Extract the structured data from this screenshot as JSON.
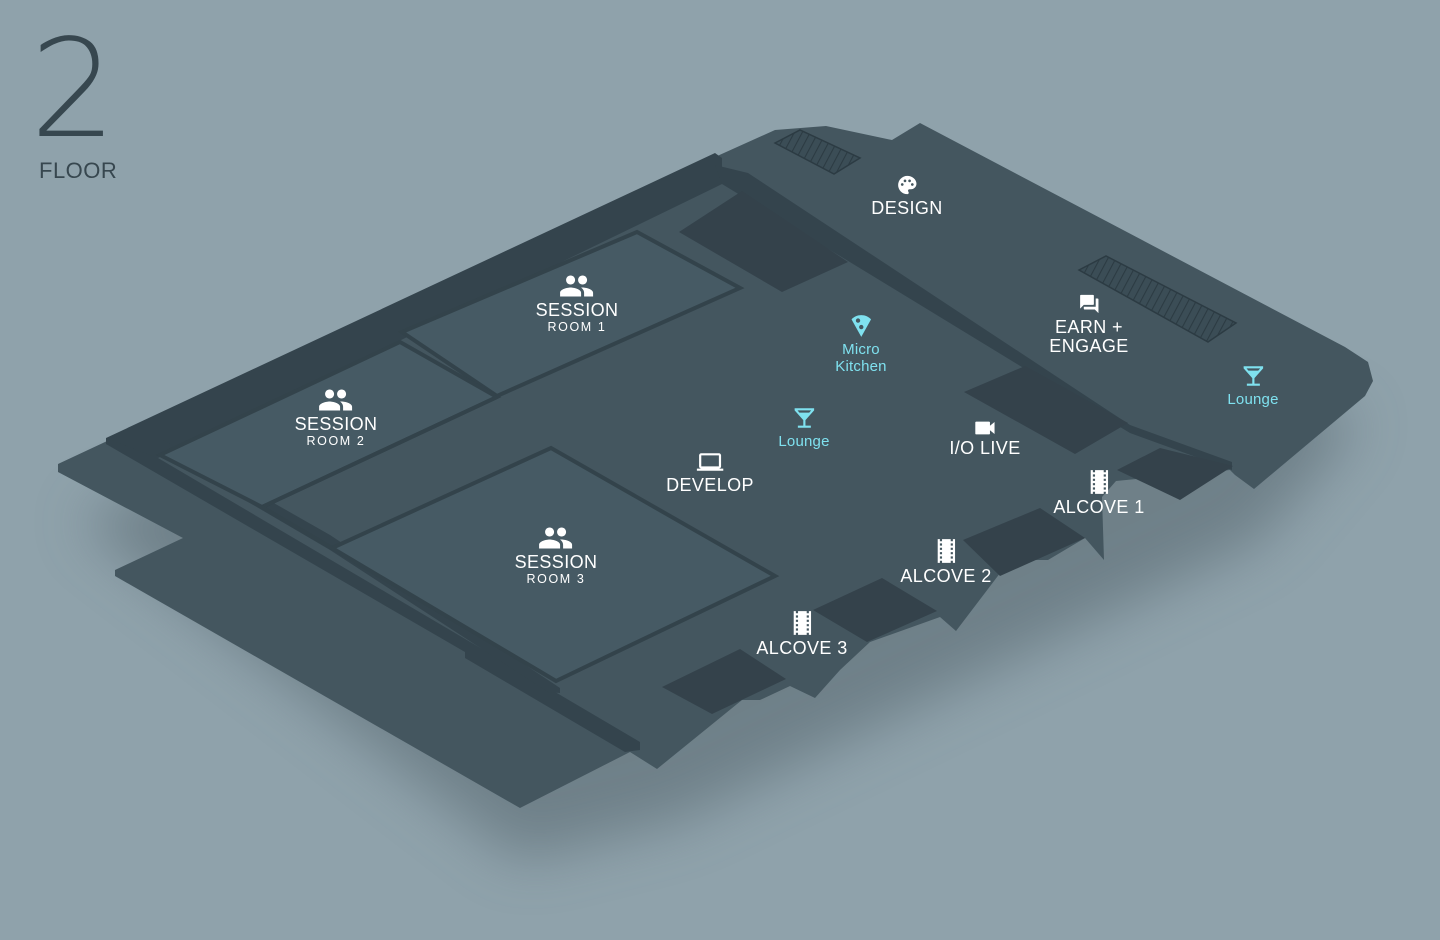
{
  "floor": {
    "number": "2",
    "label": "FLOOR"
  },
  "colors": {
    "background": "#8fa2ab",
    "floor_base": "#44565f",
    "room_fill": "#465a64",
    "wall": "#34444d",
    "block": "#34424b",
    "text": "#ffffff",
    "amenity": "#7fe1ef"
  },
  "pois": {
    "design": {
      "label": "DESIGN",
      "icon": "palette-icon"
    },
    "earn_engage": {
      "line1": "EARN +",
      "line2": "ENGAGE",
      "icon": "forum-icon"
    },
    "lounge_right": {
      "label": "Lounge",
      "icon": "cocktail-icon"
    },
    "micro_kitchen": {
      "line1": "Micro",
      "line2": "Kitchen",
      "icon": "pizza-icon"
    },
    "lounge_center": {
      "label": "Lounge",
      "icon": "cocktail-icon"
    },
    "io_live": {
      "label": "I/O LIVE",
      "icon": "video-camera-icon"
    },
    "develop": {
      "label": "DEVELOP",
      "icon": "laptop-icon"
    },
    "session_room_1": {
      "label": "SESSION",
      "sub": "ROOM 1",
      "icon": "people-icon"
    },
    "session_room_2": {
      "label": "SESSION",
      "sub": "ROOM 2",
      "icon": "people-icon"
    },
    "session_room_3": {
      "label": "SESSION",
      "sub": "ROOM 3",
      "icon": "people-icon"
    },
    "alcove_1": {
      "label": "ALCOVE 1",
      "icon": "film-icon"
    },
    "alcove_2": {
      "label": "ALCOVE 2",
      "icon": "film-icon"
    },
    "alcove_3": {
      "label": "ALCOVE 3",
      "icon": "film-icon"
    }
  }
}
